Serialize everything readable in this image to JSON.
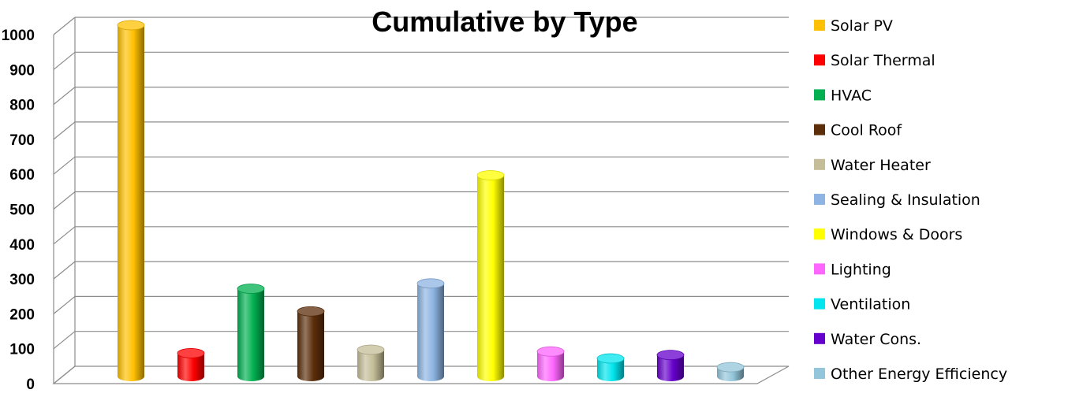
{
  "chart_data": {
    "type": "bar",
    "title": "Cumulative by Type",
    "xlabel": "",
    "ylabel": "",
    "ylim": [
      0,
      1000
    ],
    "yticks": [
      0,
      100,
      200,
      300,
      400,
      500,
      600,
      700,
      800,
      900,
      1000
    ],
    "grid": true,
    "legend_position": "right",
    "categories": [
      "Solar PV",
      "Solar Thermal",
      "HVAC",
      "Cool Roof",
      "Water Heater",
      "Sealing & Insulation",
      "Windows & Doors",
      "Lighting",
      "Ventilation",
      "Water Cons.",
      "Other Energy Efficiency"
    ],
    "values": [
      1000,
      60,
      245,
      180,
      70,
      260,
      570,
      65,
      45,
      55,
      20
    ],
    "colors": [
      "#FFC000",
      "#FF0000",
      "#00B050",
      "#5C2E0A",
      "#C4BD97",
      "#8DB4E2",
      "#FFFF00",
      "#FF66FF",
      "#00E5EE",
      "#6600CC",
      "#93C6DA"
    ]
  }
}
